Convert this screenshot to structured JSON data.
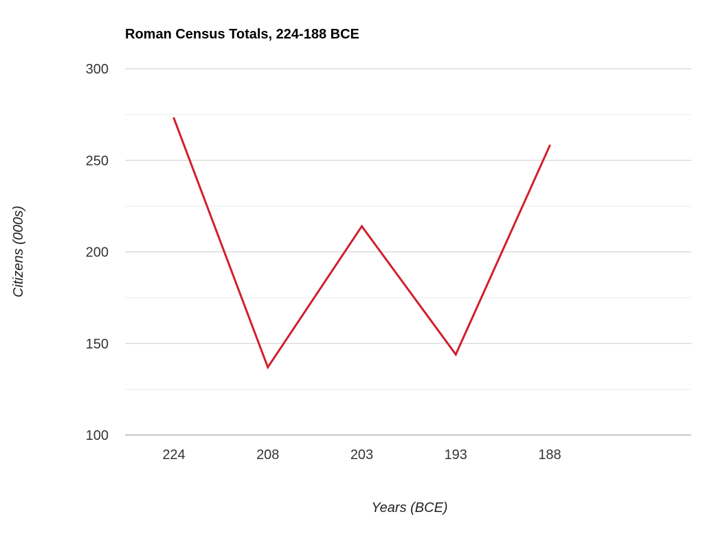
{
  "chart_data": {
    "type": "line",
    "title": "Roman Census Totals, 224-188 BCE",
    "xlabel": "Years (BCE)",
    "ylabel": "Citizens (000s)",
    "categories": [
      "224",
      "208",
      "203",
      "193",
      "188"
    ],
    "series": [
      {
        "values": [
          273,
          137,
          214,
          144,
          258
        ],
        "color": "#d0202c"
      }
    ],
    "ylim": [
      100,
      300
    ],
    "yticks": [
      "100",
      "150",
      "200",
      "250",
      "300"
    ],
    "minor_gridlines": true,
    "legend": "none",
    "colors": {
      "major_grid": "#cccccc",
      "minor_grid": "#ebebeb"
    }
  }
}
